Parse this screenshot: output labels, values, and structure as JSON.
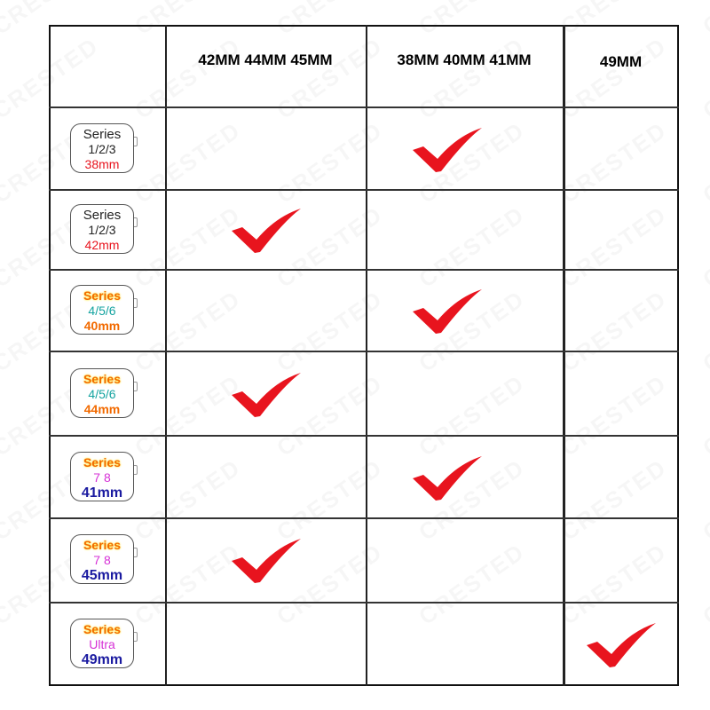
{
  "watermark": "CRESTED",
  "header": {
    "columns": [
      {
        "label": "42MM  44MM  45MM"
      },
      {
        "label": "38MM  40MM  41MM"
      },
      {
        "label": "49MM"
      }
    ]
  },
  "rows": [
    {
      "series": "Series",
      "models": "1/2/3",
      "size": "38mm",
      "check_column": 1
    },
    {
      "series": "Series",
      "models": "1/2/3",
      "size": "42mm",
      "check_column": 0
    },
    {
      "series": "Series",
      "models": "4/5/6",
      "size": "40mm",
      "check_column": 1
    },
    {
      "series": "Series",
      "models": "4/5/6",
      "size": "44mm",
      "check_column": 0
    },
    {
      "series": "Series",
      "models": "7 8",
      "size": "41mm",
      "check_column": 1
    },
    {
      "series": "Series",
      "models": "7 8",
      "size": "45mm",
      "check_column": 0
    },
    {
      "series": "Series",
      "models": "Ultra",
      "size": "49mm",
      "check_column": 2
    }
  ],
  "colors": {
    "check": "#e8141e",
    "grid": "#222222"
  }
}
